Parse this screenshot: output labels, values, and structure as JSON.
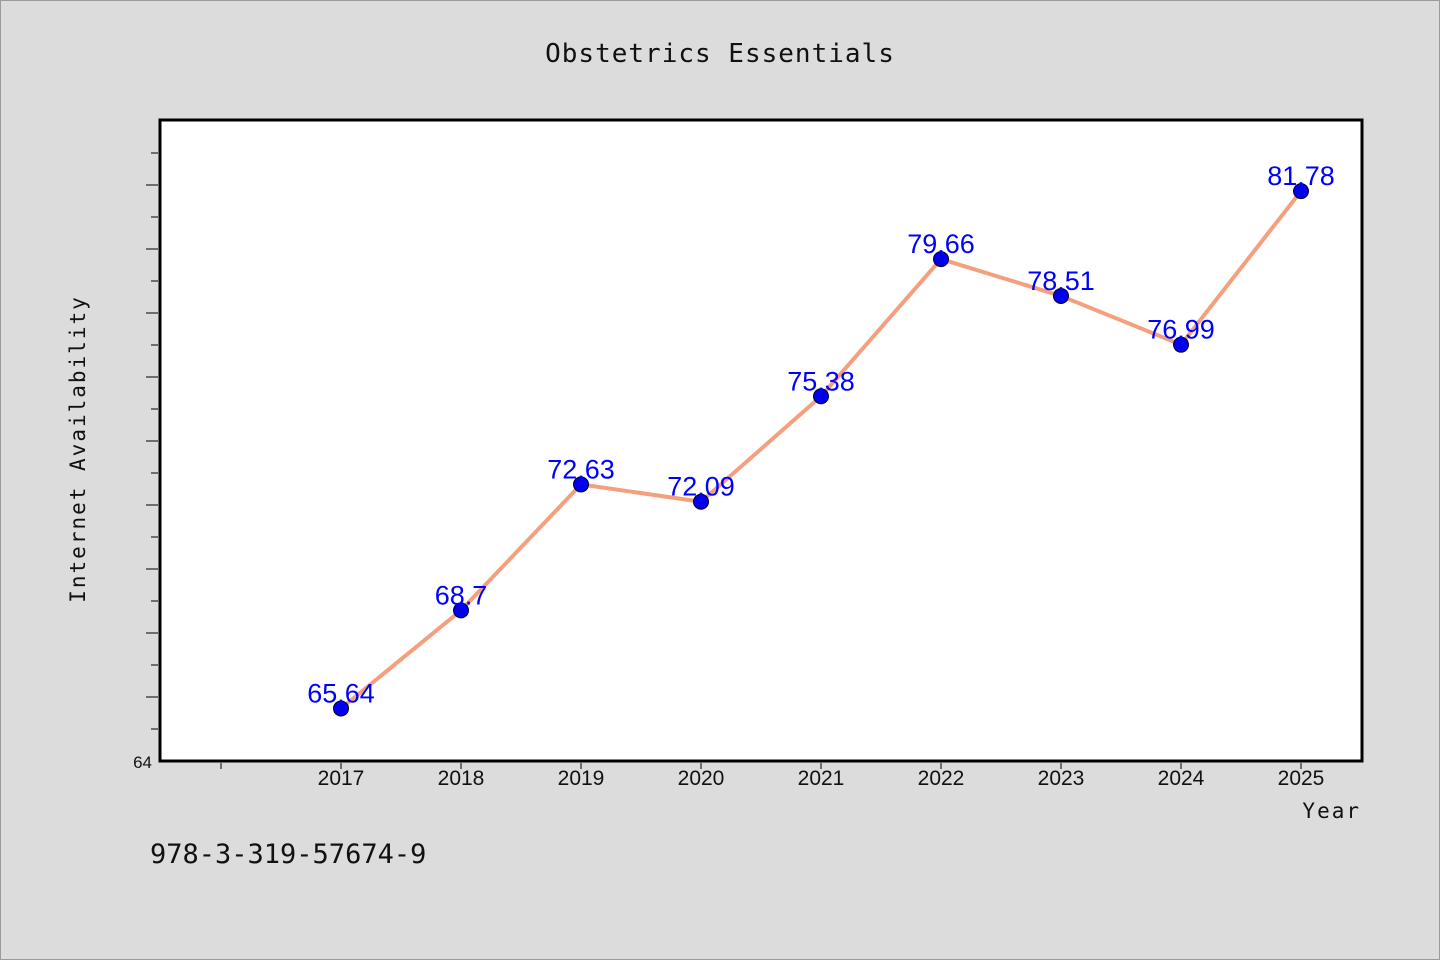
{
  "chart_data": {
    "type": "line",
    "title": "Obstetrics Essentials",
    "xlabel": "Year",
    "ylabel": "Internet Availability",
    "categories": [
      "2017",
      "2018",
      "2019",
      "2020",
      "2021",
      "2022",
      "2023",
      "2024",
      "2025"
    ],
    "series": [
      {
        "values": [
          65.64,
          68.7,
          72.63,
          72.09,
          75.38,
          79.66,
          78.51,
          76.99,
          81.78
        ]
      }
    ],
    "data_labels": [
      "65.64",
      "68.7",
      "72.63",
      "72.09",
      "75.38",
      "79.66",
      "78.51",
      "76.99",
      "81.78"
    ],
    "y_tick_labels": [
      "64"
    ],
    "ylim": [
      64,
      84
    ],
    "grid": false,
    "legend": "none",
    "line_color": "#f4a07e",
    "marker_color": "#0000ee",
    "label_color": "#0000ff"
  },
  "footer": {
    "isbn": "978-3-319-57674-9"
  }
}
